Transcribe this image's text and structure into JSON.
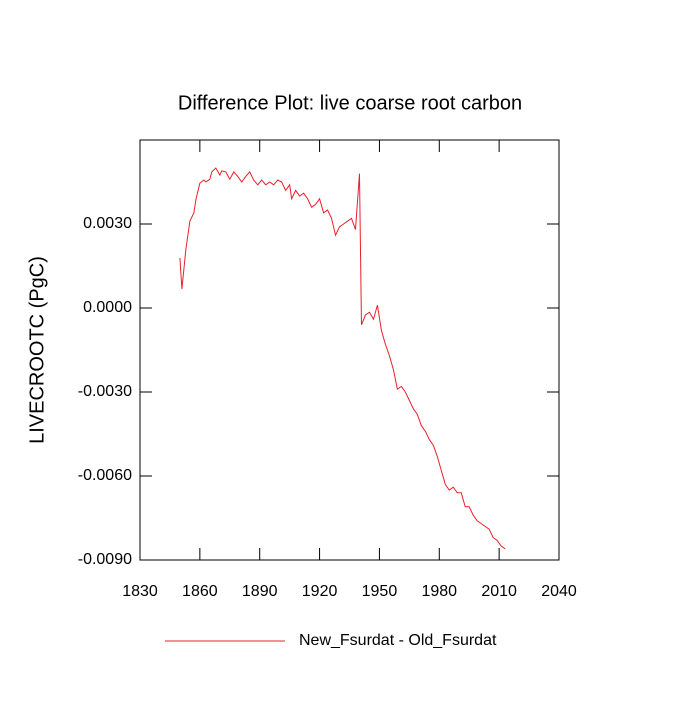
{
  "chart_data": {
    "type": "line",
    "title": "Difference Plot: live coarse root carbon",
    "y_label": "LIVECROOTC  (PgC)",
    "x": [
      1850,
      1851,
      1853,
      1855,
      1857,
      1858,
      1860,
      1862,
      1863,
      1865,
      1866,
      1868,
      1870,
      1871,
      1873,
      1875,
      1877,
      1879,
      1881,
      1883,
      1885,
      1887,
      1889,
      1891,
      1893,
      1895,
      1897,
      1899,
      1901,
      1903,
      1905,
      1906,
      1908,
      1910,
      1912,
      1914,
      1916,
      1918,
      1920,
      1922,
      1924,
      1926,
      1928,
      1930,
      1932,
      1934,
      1936,
      1938,
      1940,
      1941,
      1943,
      1945,
      1947,
      1949,
      1951,
      1953,
      1955,
      1957,
      1959,
      1961,
      1963,
      1965,
      1967,
      1969,
      1971,
      1973,
      1975,
      1977,
      1979,
      1981,
      1983,
      1985,
      1987,
      1989,
      1991,
      1993,
      1995,
      1997,
      1999,
      2001,
      2003,
      2005,
      2007,
      2009,
      2011,
      2013
    ],
    "series": [
      {
        "name": "New_Fsurdat - Old_Fsurdat",
        "color": "#e8202a",
        "values": [
          0.00179,
          0.00068,
          0.0021,
          0.0031,
          0.0034,
          0.00386,
          0.00446,
          0.00457,
          0.0045,
          0.0046,
          0.00486,
          0.005,
          0.00475,
          0.0049,
          0.00486,
          0.0046,
          0.00486,
          0.0047,
          0.0045,
          0.0047,
          0.00486,
          0.00457,
          0.0044,
          0.00457,
          0.0044,
          0.0045,
          0.0044,
          0.00457,
          0.0045,
          0.0042,
          0.0044,
          0.0039,
          0.0042,
          0.004,
          0.0041,
          0.0039,
          0.0036,
          0.0037,
          0.0039,
          0.0034,
          0.0035,
          0.0032,
          0.0026,
          0.0029,
          0.003,
          0.0031,
          0.0032,
          0.0028,
          0.0048,
          -0.0006,
          -0.00025,
          -0.00015,
          -0.0004,
          0.0001,
          -0.0008,
          -0.0013,
          -0.0017,
          -0.0022,
          -0.0029,
          -0.0028,
          -0.003,
          -0.0033,
          -0.0036,
          -0.0038,
          -0.0042,
          -0.0044,
          -0.0047,
          -0.0049,
          -0.0053,
          -0.0058,
          -0.0063,
          -0.0065,
          -0.0064,
          -0.0066,
          -0.0066,
          -0.0071,
          -0.0071,
          -0.0074,
          -0.0076,
          -0.0077,
          -0.0078,
          -0.0079,
          -0.0082,
          -0.0083,
          -0.0085,
          -0.0086
        ]
      }
    ],
    "xlim": [
      1830,
      2040
    ],
    "xticks": [
      1830,
      1860,
      1890,
      1920,
      1950,
      1980,
      2010,
      2040
    ],
    "ylim": [
      -0.009,
      0.006
    ],
    "yticks": [
      {
        "value": -0.009,
        "label": "-0.0090"
      },
      {
        "value": -0.006,
        "label": "-0.0060"
      },
      {
        "value": -0.003,
        "label": "-0.0030"
      },
      {
        "value": 0,
        "label": "0.0000"
      },
      {
        "value": 0.003,
        "label": "0.0030"
      }
    ],
    "legend": "bottom"
  }
}
